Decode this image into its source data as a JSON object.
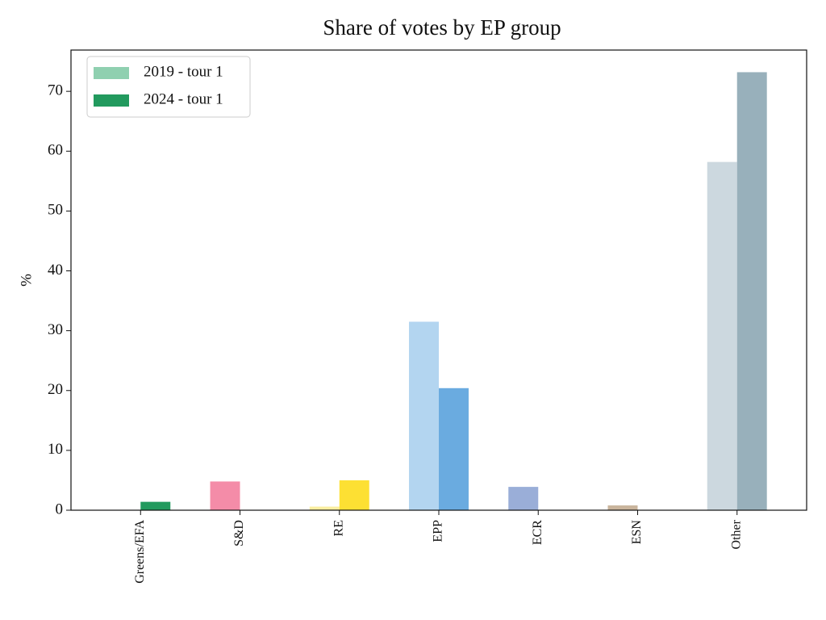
{
  "chart_data": {
    "type": "bar",
    "title": "Share of votes by EP group",
    "y_label": "%",
    "categories": [
      "Greens/EFA",
      "S&D",
      "RE",
      "EPP",
      "ECR",
      "ESN",
      "Other"
    ],
    "series": [
      {
        "name": "2019 - tour 1",
        "colors": [
          "#8fd0b0",
          "#f48ca8",
          "#fbeea0",
          "#b3d5f0",
          "#9aaed8",
          "#c9b49c",
          "#ccd8df"
        ],
        "values": [
          0,
          4.8,
          0.6,
          31.5,
          3.9,
          0.8,
          58.2
        ]
      },
      {
        "name": "2024 - tour 1",
        "colors": [
          "#229a5e",
          "#e0607f",
          "#fde033",
          "#6aabe0",
          "#6a84c4",
          "#a88a6a",
          "#98b0bb"
        ],
        "values": [
          1.4,
          0,
          5.0,
          20.4,
          0,
          0,
          73.2
        ]
      }
    ],
    "ylim": [
      0,
      76.9
    ],
    "yticks": [
      0,
      10,
      20,
      30,
      40,
      50,
      60,
      70
    ],
    "legend": "upper left"
  }
}
